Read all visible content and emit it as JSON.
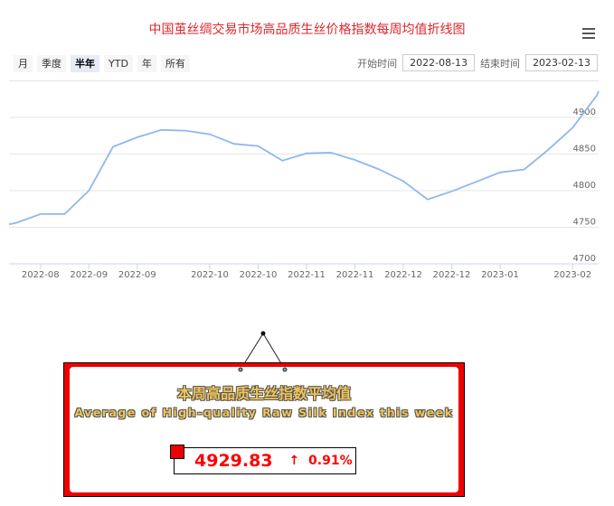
{
  "title": "中国茧丝绸交易市场高品质生丝价格指数每周均值折线图",
  "menu_icon": "hamburger-icon",
  "range_buttons": [
    "月",
    "季度",
    "半年",
    "YTD",
    "年",
    "所有"
  ],
  "active_range": "半年",
  "date_range": {
    "start_label": "开始时间",
    "start_value": "2022-08-13",
    "end_label": "结束时间",
    "end_value": "2023-02-13"
  },
  "chart_data": {
    "type": "line",
    "line_color": "#8fb8ee",
    "values": [
      4756,
      4768,
      4768,
      4800,
      4860,
      4873,
      4883,
      4882,
      4877,
      4864,
      4861,
      4841,
      4851,
      4852,
      4842,
      4829,
      4813,
      4788,
      4799,
      4812,
      4825,
      4829,
      4856,
      4886,
      4930
    ],
    "x_ticks": [
      {
        "index": 1,
        "label": "2022-08"
      },
      {
        "index": 3,
        "label": "2022-09"
      },
      {
        "index": 5,
        "label": "2022-09"
      },
      {
        "index": 8,
        "label": "2022-10"
      },
      {
        "index": 10,
        "label": "2022-10"
      },
      {
        "index": 12,
        "label": "2022-11"
      },
      {
        "index": 14,
        "label": "2022-11"
      },
      {
        "index": 16,
        "label": "2022-12"
      },
      {
        "index": 18,
        "label": "2022-12"
      },
      {
        "index": 20,
        "label": "2023-01"
      },
      {
        "index": 23,
        "label": "2023-02"
      }
    ],
    "y_ticks": [
      4700,
      4750,
      4800,
      4850,
      4900
    ],
    "ylim": [
      4700,
      4950
    ],
    "grid": true,
    "y_axis_side": "right"
  },
  "panel": {
    "title_cn": "本周高品质生丝指数平均值",
    "title_en": "Average of High-quality Raw Silk Index this week",
    "value": "4929.83",
    "change_arrow": "↑",
    "change": "0.91%"
  }
}
